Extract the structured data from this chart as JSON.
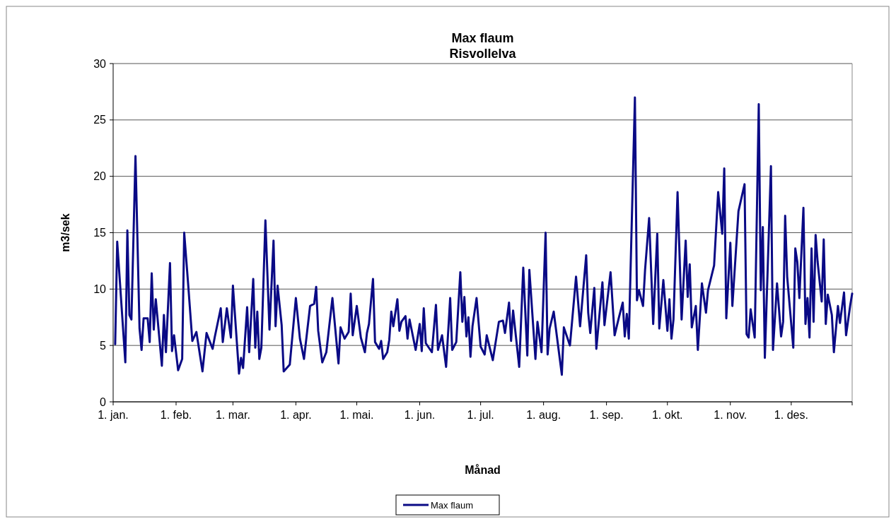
{
  "chart_data": {
    "type": "line",
    "title": "Max flaum",
    "subtitle": "Risvollelva",
    "xlabel": "Månad",
    "ylabel": "m3/sek",
    "xlim": [
      "--01-01",
      "--12-31"
    ],
    "xticks": [
      {
        "value": "--01-01",
        "label": "1. jan."
      },
      {
        "value": "--02-01",
        "label": "1. feb."
      },
      {
        "value": "--03-01",
        "label": "1. mar."
      },
      {
        "value": "--04-01",
        "label": "1. apr."
      },
      {
        "value": "--05-01",
        "label": "1. mai."
      },
      {
        "value": "--06-01",
        "label": "1. jun."
      },
      {
        "value": "--07-01",
        "label": "1. jul."
      },
      {
        "value": "--08-01",
        "label": "1. aug."
      },
      {
        "value": "--09-01",
        "label": "1. sep."
      },
      {
        "value": "--10-01",
        "label": "1. okt."
      },
      {
        "value": "--11-01",
        "label": "1. nov."
      },
      {
        "value": "--12-01",
        "label": "1. des."
      }
    ],
    "ylim": [
      0,
      30
    ],
    "yticks": [
      0,
      5,
      10,
      15,
      20,
      25,
      30
    ],
    "grid": "y",
    "legend": "bottom",
    "marker": "none",
    "line_style": "solid",
    "series": [
      {
        "name": "Max flaum",
        "color": "#0a0a85",
        "x": [
          "--01-02",
          "--01-03",
          "--01-07",
          "--01-08",
          "--01-09",
          "--01-10",
          "--01-12",
          "--01-14",
          "--01-15",
          "--01-16",
          "--01-18",
          "--01-19",
          "--01-20",
          "--01-21",
          "--01-22",
          "--01-25",
          "--01-26",
          "--01-27",
          "--01-29",
          "--01-30",
          "--01-31",
          "--02-02",
          "--02-04",
          "--02-05",
          "--02-07",
          "--02-09",
          "--02-11",
          "--02-14",
          "--02-16",
          "--02-19",
          "--02-20",
          "--02-23",
          "--02-24",
          "--02-26",
          "--02-28",
          "--03-01",
          "--03-04",
          "--03-05",
          "--03-06",
          "--03-08",
          "--03-09",
          "--03-11",
          "--03-12",
          "--03-13",
          "--03-14",
          "--03-15",
          "--03-17",
          "--03-19",
          "--03-21",
          "--03-22",
          "--03-23",
          "--03-25",
          "--03-26",
          "--03-29",
          "--04-01",
          "--04-03",
          "--04-05",
          "--04-08",
          "--04-10",
          "--04-11",
          "--04-12",
          "--04-14",
          "--04-16",
          "--04-19",
          "--04-22",
          "--04-23",
          "--04-25",
          "--04-27",
          "--04-28",
          "--04-29",
          "--05-01",
          "--05-03",
          "--05-05",
          "--05-06",
          "--05-07",
          "--05-09",
          "--05-10",
          "--05-12",
          "--05-13",
          "--05-14",
          "--05-16",
          "--05-17",
          "--05-18",
          "--05-19",
          "--05-21",
          "--05-22",
          "--05-23",
          "--05-25",
          "--05-26",
          "--05-27",
          "--05-30",
          "--06-01",
          "--06-02",
          "--06-03",
          "--06-04",
          "--06-07",
          "--06-09",
          "--06-10",
          "--06-12",
          "--06-14",
          "--06-16",
          "--06-17",
          "--06-19",
          "--06-21",
          "--06-22",
          "--06-23",
          "--06-24",
          "--06-25",
          "--06-26",
          "--06-27",
          "--06-29",
          "--07-01",
          "--07-03",
          "--07-04",
          "--07-07",
          "--07-10",
          "--07-12",
          "--07-13",
          "--07-15",
          "--07-16",
          "--07-17",
          "--07-20",
          "--07-22",
          "--07-24",
          "--07-25",
          "--07-28",
          "--07-29",
          "--07-31",
          "--08-02",
          "--08-03",
          "--08-04",
          "--08-06",
          "--08-10",
          "--08-11",
          "--08-14",
          "--08-17",
          "--08-19",
          "--08-22",
          "--08-23",
          "--08-24",
          "--08-26",
          "--08-27",
          "--08-30",
          "--08-31",
          "--09-03",
          "--09-05",
          "--09-07",
          "--09-09",
          "--09-10",
          "--09-11",
          "--09-12",
          "--09-15",
          "--09-16",
          "--09-17",
          "--09-19",
          "--09-20",
          "--09-22",
          "--09-24",
          "--09-26",
          "--09-27",
          "--09-29",
          "--10-01",
          "--10-02",
          "--10-03",
          "--10-04",
          "--10-06",
          "--10-08",
          "--10-10",
          "--10-11",
          "--10-12",
          "--10-13",
          "--10-15",
          "--10-16",
          "--10-18",
          "--10-20",
          "--10-21",
          "--10-24",
          "--10-26",
          "--10-28",
          "--10-29",
          "--10-30",
          "--11-01",
          "--11-02",
          "--11-05",
          "--11-08",
          "--11-09",
          "--11-10",
          "--11-11",
          "--11-13",
          "--11-15",
          "--11-16",
          "--11-17",
          "--11-18",
          "--11-21",
          "--11-22",
          "--11-24",
          "--11-26",
          "--11-27",
          "--11-28",
          "--11-29",
          "--12-02",
          "--12-03",
          "--12-04",
          "--12-05",
          "--12-07",
          "--12-08",
          "--12-09",
          "--12-10",
          "--12-11",
          "--12-12",
          "--12-13",
          "--12-14",
          "--12-16",
          "--12-17",
          "--12-18",
          "--12-19",
          "--12-21",
          "--12-22",
          "--12-24",
          "--12-25",
          "--12-27",
          "--12-28",
          "--12-30",
          "--12-31"
        ],
        "values": [
          5.1,
          14.2,
          3.5,
          15.2,
          7.7,
          7.3,
          21.8,
          6.5,
          4.6,
          7.4,
          7.4,
          5.3,
          11.4,
          6.4,
          9.1,
          3.2,
          7.7,
          4.4,
          12.3,
          4.5,
          5.9,
          2.8,
          3.8,
          15.0,
          10.3,
          5.4,
          6.2,
          2.7,
          6.1,
          4.7,
          5.7,
          8.3,
          5.3,
          8.3,
          5.7,
          10.3,
          2.5,
          3.9,
          3.0,
          8.4,
          4.4,
          10.9,
          4.8,
          8.0,
          3.8,
          4.8,
          16.1,
          6.4,
          14.3,
          6.7,
          10.3,
          6.8,
          2.7,
          3.3,
          9.2,
          5.6,
          3.8,
          8.5,
          8.7,
          10.2,
          6.3,
          3.5,
          4.4,
          9.2,
          3.4,
          6.6,
          5.6,
          6.2,
          9.6,
          5.9,
          8.5,
          5.7,
          4.4,
          6.1,
          6.9,
          10.9,
          5.3,
          4.7,
          5.4,
          3.8,
          4.4,
          5.5,
          8.0,
          6.7,
          9.1,
          6.3,
          7.1,
          7.6,
          5.6,
          7.3,
          4.6,
          6.9,
          4.5,
          8.3,
          5.2,
          4.4,
          8.6,
          4.6,
          5.9,
          3.1,
          9.2,
          4.6,
          5.3,
          11.5,
          7.1,
          9.3,
          5.8,
          7.5,
          4.0,
          6.7,
          9.2,
          4.9,
          4.2,
          5.9,
          3.7,
          7.1,
          7.2,
          6.1,
          8.8,
          5.4,
          8.1,
          3.1,
          11.9,
          4.1,
          11.7,
          3.8,
          7.1,
          4.4,
          15.0,
          4.2,
          6.5,
          8.0,
          2.4,
          6.6,
          5.0,
          11.1,
          6.7,
          13.0,
          7.9,
          6.1,
          10.1,
          4.7,
          10.6,
          6.8,
          11.5,
          5.9,
          7.4,
          8.8,
          5.8,
          7.8,
          5.6,
          27.0,
          9.0,
          9.9,
          8.5,
          11.7,
          16.3,
          6.9,
          14.9,
          6.5,
          10.8,
          6.3,
          9.1,
          5.6,
          7.3,
          18.6,
          7.3,
          14.3,
          9.3,
          12.2,
          6.6,
          8.5,
          4.6,
          10.5,
          7.9,
          9.9,
          12.1,
          18.6,
          14.9,
          20.7,
          7.4,
          14.1,
          8.5,
          16.9,
          19.3,
          6.0,
          5.7,
          8.2,
          5.7,
          26.4,
          9.9,
          15.5,
          3.9,
          20.9,
          4.6,
          10.5,
          5.8,
          7.1,
          16.5,
          11.1,
          4.8,
          13.6,
          12.4,
          9.2,
          17.2,
          6.9,
          9.2,
          5.7,
          13.6,
          7.1,
          14.8,
          12.4,
          8.9,
          14.4,
          6.9,
          9.5,
          7.7,
          4.4,
          8.5,
          7.0,
          9.7,
          5.9,
          8.5,
          9.6
        ]
      }
    ]
  }
}
